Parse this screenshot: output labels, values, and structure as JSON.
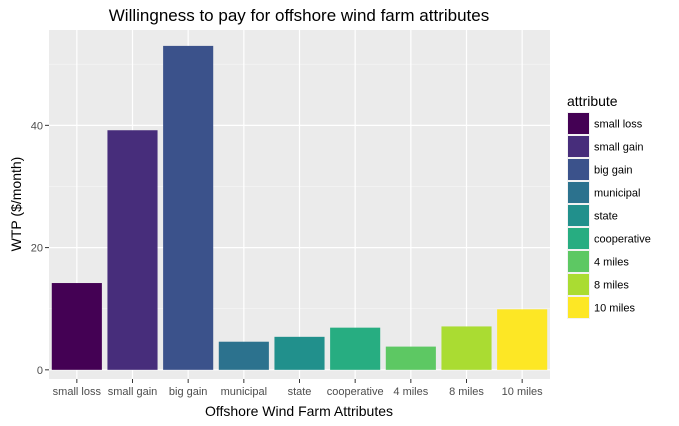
{
  "chart_data": {
    "type": "bar",
    "title": "Willingness to pay for offshore wind farm attributes",
    "xlabel": "Offshore Wind Farm Attributes",
    "ylabel": "WTP ($/month)",
    "categories": [
      "small loss",
      "small gain",
      "big gain",
      "municipal",
      "state",
      "cooperative",
      "4 miles",
      "8 miles",
      "10 miles"
    ],
    "values": [
      14.2,
      39.2,
      53.0,
      4.6,
      5.4,
      6.9,
      3.8,
      7.1,
      9.9
    ],
    "colors": [
      "#440154",
      "#472D7B",
      "#3B528B",
      "#2C728E",
      "#21908C",
      "#27AD81",
      "#5DC863",
      "#AADC32",
      "#FDE725"
    ],
    "ylim": [
      -1.5,
      55.6
    ],
    "yticks": [
      0,
      20,
      40
    ],
    "grid": true,
    "legend": {
      "title": "attribute",
      "placement": "right",
      "items": [
        "small loss",
        "small gain",
        "big gain",
        "municipal",
        "state",
        "cooperative",
        "4 miles",
        "8 miles",
        "10 miles"
      ]
    }
  }
}
